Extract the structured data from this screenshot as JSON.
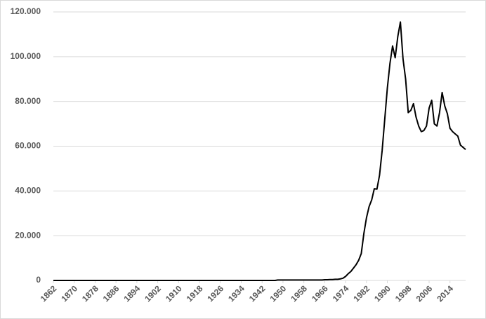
{
  "chart_data": {
    "type": "line",
    "color": "#000000",
    "x": [
      1862,
      1863,
      1864,
      1865,
      1866,
      1867,
      1868,
      1869,
      1870,
      1871,
      1872,
      1873,
      1874,
      1875,
      1876,
      1877,
      1878,
      1879,
      1880,
      1881,
      1882,
      1883,
      1884,
      1885,
      1886,
      1887,
      1888,
      1889,
      1890,
      1891,
      1892,
      1893,
      1894,
      1895,
      1896,
      1897,
      1898,
      1899,
      1900,
      1901,
      1902,
      1903,
      1904,
      1905,
      1906,
      1907,
      1908,
      1909,
      1910,
      1911,
      1912,
      1913,
      1914,
      1915,
      1916,
      1917,
      1918,
      1919,
      1920,
      1921,
      1922,
      1923,
      1924,
      1925,
      1926,
      1927,
      1928,
      1929,
      1930,
      1931,
      1932,
      1933,
      1934,
      1935,
      1936,
      1937,
      1938,
      1939,
      1940,
      1941,
      1942,
      1943,
      1944,
      1945,
      1946,
      1947,
      1948,
      1949,
      1950,
      1951,
      1952,
      1953,
      1954,
      1955,
      1956,
      1957,
      1958,
      1959,
      1960,
      1961,
      1962,
      1963,
      1964,
      1965,
      1966,
      1967,
      1968,
      1969,
      1970,
      1971,
      1972,
      1973,
      1974,
      1975,
      1976,
      1977,
      1978,
      1979,
      1980,
      1981,
      1982,
      1983,
      1984,
      1985,
      1986,
      1987,
      1988,
      1989,
      1990,
      1991,
      1992,
      1993,
      1994,
      1995,
      1996,
      1997,
      1998,
      1999,
      2000,
      2001,
      2002,
      2003,
      2004,
      2005,
      2006,
      2007,
      2008,
      2009,
      2010,
      2011,
      2012,
      2013,
      2014,
      2015,
      2016,
      2017,
      2018,
      2019,
      2020
    ],
    "values": [
      0,
      0,
      0,
      0,
      0,
      0,
      0,
      0,
      0,
      0,
      0,
      0,
      0,
      0,
      0,
      0,
      0,
      0,
      0,
      0,
      0,
      0,
      0,
      0,
      0,
      0,
      0,
      0,
      0,
      0,
      0,
      0,
      0,
      0,
      0,
      0,
      0,
      0,
      0,
      0,
      0,
      0,
      0,
      0,
      0,
      0,
      0,
      0,
      0,
      0,
      0,
      0,
      0,
      0,
      0,
      0,
      0,
      0,
      0,
      0,
      0,
      0,
      0,
      0,
      0,
      0,
      0,
      0,
      0,
      0,
      0,
      0,
      0,
      0,
      0,
      0,
      0,
      0,
      0,
      0,
      0,
      0,
      0,
      0,
      0,
      0,
      200,
      200,
      200,
      200,
      200,
      200,
      200,
      200,
      200,
      200,
      200,
      200,
      200,
      200,
      200,
      200,
      200,
      200,
      300,
      300,
      400,
      400,
      500,
      500,
      700,
      1000,
      1800,
      3000,
      4000,
      5500,
      7000,
      9000,
      12000,
      21000,
      28000,
      33000,
      36000,
      41000,
      40800,
      47000,
      58000,
      72000,
      86000,
      97000,
      104800,
      99500,
      109000,
      115500,
      99000,
      90000,
      75000,
      76000,
      79000,
      73000,
      69000,
      66500,
      67000,
      69000,
      77000,
      80500,
      70000,
      69000,
      75000,
      84000,
      78000,
      74500,
      68000,
      66500,
      65500,
      64500,
      60500,
      59500,
      58500
    ],
    "xlim": [
      1862,
      2020
    ],
    "xticks": [
      1862,
      1870,
      1878,
      1886,
      1894,
      1902,
      1910,
      1918,
      1926,
      1934,
      1942,
      1950,
      1958,
      1966,
      1974,
      1982,
      1990,
      1998,
      2006,
      2014
    ],
    "ylim": [
      0,
      120000
    ],
    "yticks": [
      0,
      {
        "value": 20000,
        "label": "20.000"
      },
      {
        "value": 40000,
        "label": "40.000"
      },
      {
        "value": 60000,
        "label": "60.000"
      },
      {
        "value": 80000,
        "label": "80.000"
      },
      {
        "value": 100000,
        "label": "100.000"
      },
      {
        "value": 120000,
        "label": "120.000"
      }
    ],
    "grid": true
  }
}
